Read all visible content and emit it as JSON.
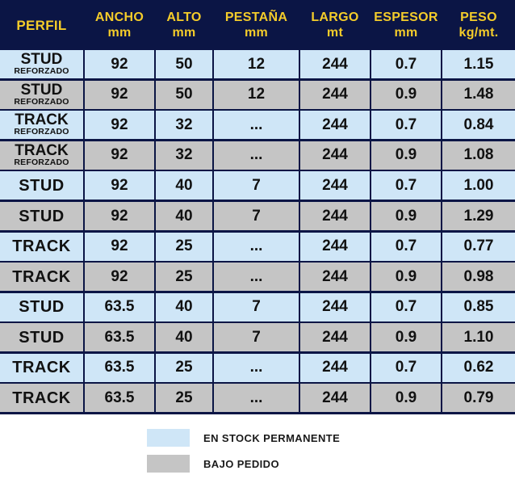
{
  "table": {
    "headers": [
      {
        "key": "perfil",
        "label": "PERFIL"
      },
      {
        "key": "ancho",
        "label": "ANCHO\nmm"
      },
      {
        "key": "alto",
        "label": "ALTO\nmm"
      },
      {
        "key": "pestana",
        "label": "PESTAÑA\nmm"
      },
      {
        "key": "largo",
        "label": "LARGO\nmt"
      },
      {
        "key": "espesor",
        "label": "ESPESOR\nmm"
      },
      {
        "key": "peso",
        "label": "PESO\nkg/mt."
      }
    ],
    "rows": [
      {
        "perfil": "STUD",
        "sub": "REFORZADO",
        "ancho": "92",
        "alto": "50",
        "pestana": "12",
        "largo": "244",
        "espesor": "0.7",
        "peso": "1.15",
        "status": "stock"
      },
      {
        "perfil": "STUD",
        "sub": "REFORZADO",
        "ancho": "92",
        "alto": "50",
        "pestana": "12",
        "largo": "244",
        "espesor": "0.9",
        "peso": "1.48",
        "status": "pedido"
      },
      {
        "perfil": "TRACK",
        "sub": "REFORZADO",
        "ancho": "92",
        "alto": "32",
        "pestana": "...",
        "largo": "244",
        "espesor": "0.7",
        "peso": "0.84",
        "status": "stock"
      },
      {
        "perfil": "TRACK",
        "sub": "REFORZADO",
        "ancho": "92",
        "alto": "32",
        "pestana": "...",
        "largo": "244",
        "espesor": "0.9",
        "peso": "1.08",
        "status": "pedido"
      },
      {
        "perfil": "STUD",
        "sub": "",
        "ancho": "92",
        "alto": "40",
        "pestana": "7",
        "largo": "244",
        "espesor": "0.7",
        "peso": "1.00",
        "status": "stock"
      },
      {
        "perfil": "STUD",
        "sub": "",
        "ancho": "92",
        "alto": "40",
        "pestana": "7",
        "largo": "244",
        "espesor": "0.9",
        "peso": "1.29",
        "status": "pedido"
      },
      {
        "perfil": "TRACK",
        "sub": "",
        "ancho": "92",
        "alto": "25",
        "pestana": "...",
        "largo": "244",
        "espesor": "0.7",
        "peso": "0.77",
        "status": "stock"
      },
      {
        "perfil": "TRACK",
        "sub": "",
        "ancho": "92",
        "alto": "25",
        "pestana": "...",
        "largo": "244",
        "espesor": "0.9",
        "peso": "0.98",
        "status": "pedido"
      },
      {
        "perfil": "STUD",
        "sub": "",
        "ancho": "63.5",
        "alto": "40",
        "pestana": "7",
        "largo": "244",
        "espesor": "0.7",
        "peso": "0.85",
        "status": "stock"
      },
      {
        "perfil": "STUD",
        "sub": "",
        "ancho": "63.5",
        "alto": "40",
        "pestana": "7",
        "largo": "244",
        "espesor": "0.9",
        "peso": "1.10",
        "status": "pedido"
      },
      {
        "perfil": "TRACK",
        "sub": "",
        "ancho": "63.5",
        "alto": "25",
        "pestana": "...",
        "largo": "244",
        "espesor": "0.7",
        "peso": "0.62",
        "status": "stock"
      },
      {
        "perfil": "TRACK",
        "sub": "",
        "ancho": "63.5",
        "alto": "25",
        "pestana": "...",
        "largo": "244",
        "espesor": "0.9",
        "peso": "0.79",
        "status": "pedido"
      }
    ]
  },
  "legend": [
    {
      "status": "stock",
      "label": "EN STOCK PERMANENTE",
      "color": "#cfe6f7"
    },
    {
      "status": "pedido",
      "label": "BAJO PEDIDO",
      "color": "#c5c5c5"
    }
  ],
  "colors": {
    "header_bg": "#0b1545",
    "header_text": "#f4cc2a",
    "stock_row": "#cfe6f7",
    "pedido_row": "#c5c5c5"
  }
}
